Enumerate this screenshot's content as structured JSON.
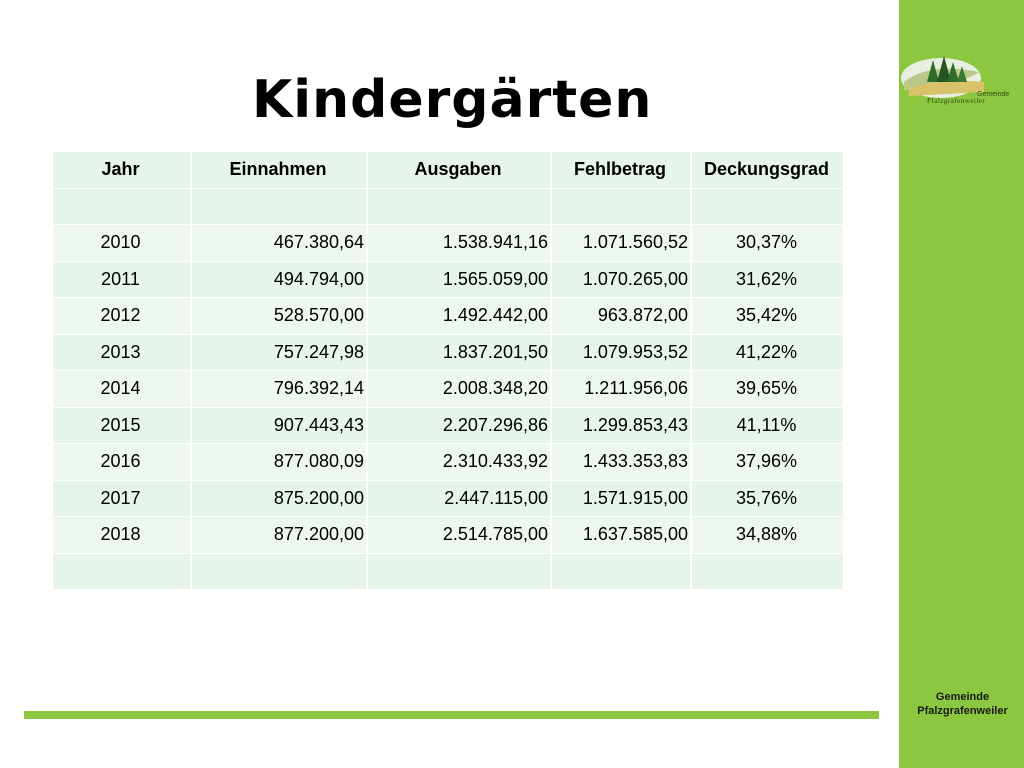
{
  "title": "Kindergärten",
  "logo": {
    "text_top": "Gemeinde",
    "text_bottom": "Pfalzgrafenweiler",
    "icon": "forest-landscape-logo"
  },
  "footer": {
    "line1": "Gemeinde",
    "line2": "Pfalzgrafenweiler"
  },
  "colors": {
    "accent": "#8dc63f",
    "table_cell": "#e6f4ea"
  },
  "table": {
    "headers": [
      "Jahr",
      "Einnahmen",
      "Ausgaben",
      "Fehlbetrag",
      "Deckungsgrad"
    ],
    "rows": [
      [
        "",
        "",
        "",
        "",
        ""
      ],
      [
        "2010",
        "467.380,64",
        "1.538.941,16",
        "1.071.560,52",
        "30,37%"
      ],
      [
        "2011",
        "494.794,00",
        "1.565.059,00",
        "1.070.265,00",
        "31,62%"
      ],
      [
        "2012",
        "528.570,00",
        "1.492.442,00",
        "963.872,00",
        "35,42%"
      ],
      [
        "2013",
        "757.247,98",
        "1.837.201,50",
        "1.079.953,52",
        "41,22%"
      ],
      [
        "2014",
        "796.392,14",
        "2.008.348,20",
        "1.211.956,06",
        "39,65%"
      ],
      [
        "2015",
        "907.443,43",
        "2.207.296,86",
        "1.299.853,43",
        "41,11%"
      ],
      [
        "2016",
        "877.080,09",
        "2.310.433,92",
        "1.433.353,83",
        "37,96%"
      ],
      [
        "2017",
        "875.200,00",
        "2.447.115,00",
        "1.571.915,00",
        "35,76%"
      ],
      [
        "2018",
        "877.200,00",
        "2.514.785,00",
        "1.637.585,00",
        "34,88%"
      ],
      [
        "",
        "",
        "",
        "",
        ""
      ]
    ]
  }
}
